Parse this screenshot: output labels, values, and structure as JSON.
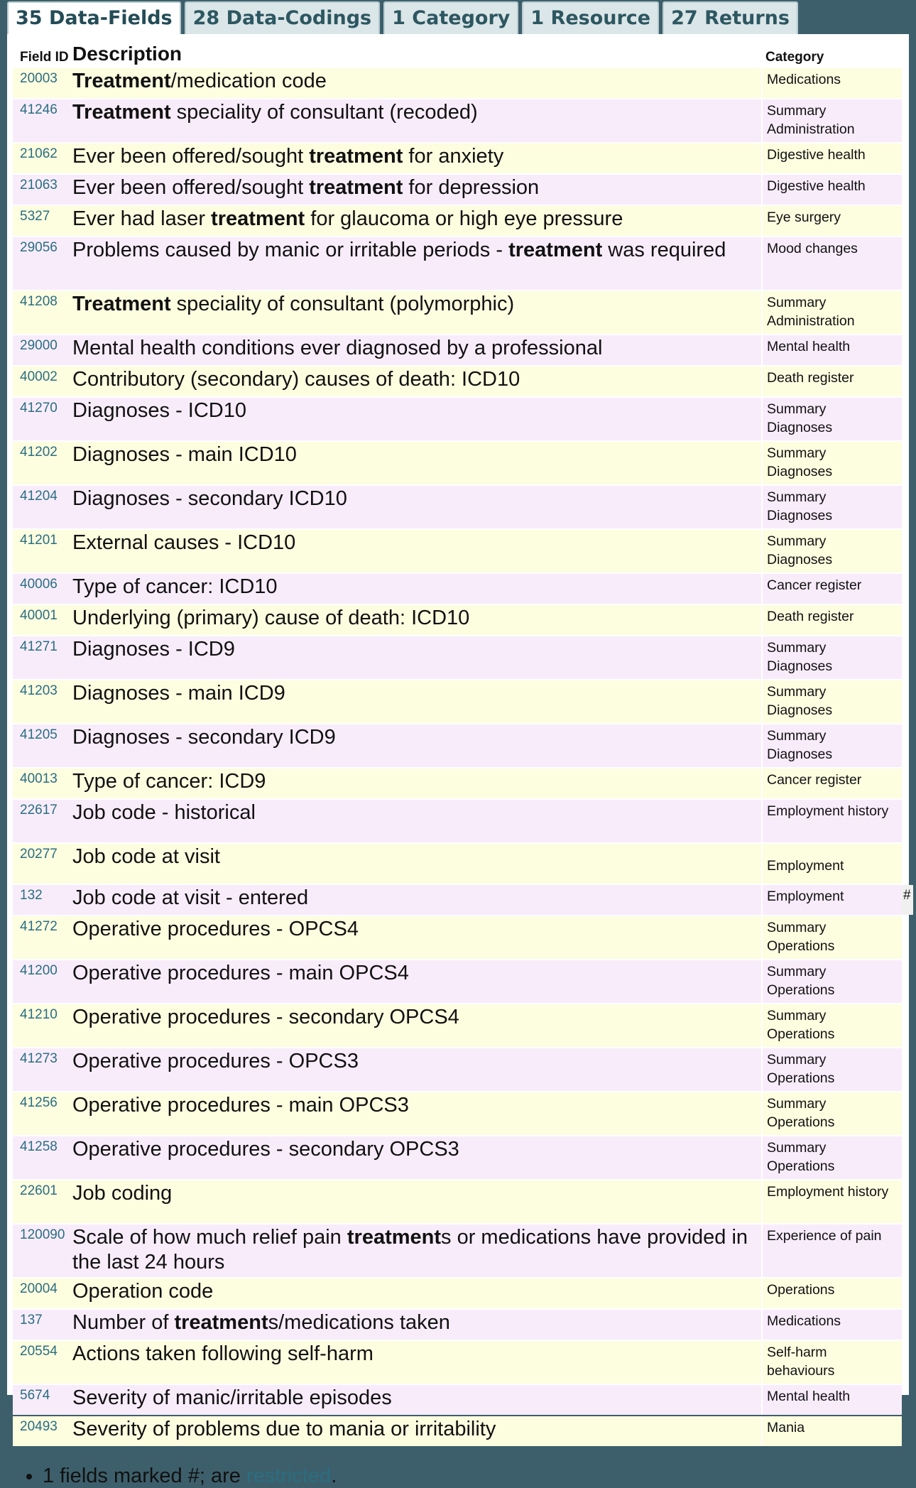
{
  "tabs": [
    {
      "label": "35 Data-Fields",
      "active": true
    },
    {
      "label": "28 Data-Codings",
      "active": false
    },
    {
      "label": "1 Category",
      "active": false
    },
    {
      "label": "1 Resource",
      "active": false
    },
    {
      "label": "27 Returns",
      "active": false
    }
  ],
  "table": {
    "headers": {
      "field_id": "Field ID",
      "description": "Description",
      "category": "Category"
    },
    "rows": [
      {
        "id": "20003",
        "desc": [
          {
            "t": "Treatment",
            "b": true
          },
          {
            "t": "/medication code"
          }
        ],
        "cat": [
          "Medications"
        ]
      },
      {
        "id": "41246",
        "desc": [
          {
            "t": "Treatment",
            "b": true
          },
          {
            "t": " speciality of consultant (recoded)"
          }
        ],
        "cat": [
          "Summary",
          "Administration"
        ]
      },
      {
        "id": "21062",
        "desc": [
          {
            "t": "Ever been offered/sought "
          },
          {
            "t": "treatment",
            "b": true
          },
          {
            "t": " for anxiety"
          }
        ],
        "cat": [
          "Digestive health"
        ]
      },
      {
        "id": "21063",
        "desc": [
          {
            "t": "Ever been offered/sought "
          },
          {
            "t": "treatment",
            "b": true
          },
          {
            "t": " for depression"
          }
        ],
        "cat": [
          "Digestive health"
        ]
      },
      {
        "id": "5327",
        "desc": [
          {
            "t": "Ever had laser "
          },
          {
            "t": "treatment",
            "b": true
          },
          {
            "t": " for glaucoma or high eye pressure"
          }
        ],
        "cat": [
          "Eye surgery"
        ]
      },
      {
        "id": "29056",
        "desc": [
          {
            "t": "Problems caused by manic or irritable periods - "
          },
          {
            "t": "treatment",
            "b": true
          },
          {
            "t": " was required"
          }
        ],
        "cat": [
          "Mood changes"
        ],
        "tall": true
      },
      {
        "id": "41208",
        "desc": [
          {
            "t": "Treatment",
            "b": true
          },
          {
            "t": " speciality of consultant (polymorphic)"
          }
        ],
        "cat": [
          "Summary",
          "Administration"
        ]
      },
      {
        "id": "29000",
        "desc": [
          {
            "t": "Mental health conditions ever diagnosed by a professional"
          }
        ],
        "cat": [
          "Mental health"
        ]
      },
      {
        "id": "40002",
        "desc": [
          {
            "t": "Contributory (secondary) causes of death: ICD10"
          }
        ],
        "cat": [
          "Death register"
        ]
      },
      {
        "id": "41270",
        "desc": [
          {
            "t": "Diagnoses - ICD10"
          }
        ],
        "cat": [
          "Summary",
          "Diagnoses"
        ]
      },
      {
        "id": "41202",
        "desc": [
          {
            "t": "Diagnoses - main ICD10"
          }
        ],
        "cat": [
          "Summary",
          "Diagnoses"
        ]
      },
      {
        "id": "41204",
        "desc": [
          {
            "t": "Diagnoses - secondary ICD10"
          }
        ],
        "cat": [
          "Summary",
          "Diagnoses"
        ]
      },
      {
        "id": "41201",
        "desc": [
          {
            "t": "External causes - ICD10"
          }
        ],
        "cat": [
          "Summary",
          "Diagnoses"
        ]
      },
      {
        "id": "40006",
        "desc": [
          {
            "t": "Type of cancer: ICD10"
          }
        ],
        "cat": [
          "Cancer register"
        ]
      },
      {
        "id": "40001",
        "desc": [
          {
            "t": "Underlying (primary) cause of death: ICD10"
          }
        ],
        "cat": [
          "Death register"
        ]
      },
      {
        "id": "41271",
        "desc": [
          {
            "t": "Diagnoses - ICD9"
          }
        ],
        "cat": [
          "Summary",
          "Diagnoses"
        ]
      },
      {
        "id": "41203",
        "desc": [
          {
            "t": "Diagnoses - main ICD9"
          }
        ],
        "cat": [
          "Summary",
          "Diagnoses"
        ]
      },
      {
        "id": "41205",
        "desc": [
          {
            "t": "Diagnoses - secondary ICD9"
          }
        ],
        "cat": [
          "Summary",
          "Diagnoses"
        ]
      },
      {
        "id": "40013",
        "desc": [
          {
            "t": "Type of cancer: ICD9"
          }
        ],
        "cat": [
          "Cancer register"
        ]
      },
      {
        "id": "22617",
        "desc": [
          {
            "t": "Job code - historical"
          }
        ],
        "cat": [
          "Employment history"
        ],
        "tall2": true
      },
      {
        "id": "20277",
        "desc": [
          {
            "t": "Job code at visit"
          }
        ],
        "cat": [
          "Employment"
        ],
        "catPad": true
      },
      {
        "id": "132",
        "desc": [
          {
            "t": "Job code at visit - entered"
          }
        ],
        "cat": [
          "Employment"
        ],
        "mark": "#"
      },
      {
        "id": "41272",
        "desc": [
          {
            "t": "Operative procedures - OPCS4"
          }
        ],
        "cat": [
          "Summary",
          "Operations"
        ]
      },
      {
        "id": "41200",
        "desc": [
          {
            "t": "Operative procedures - main OPCS4"
          }
        ],
        "cat": [
          "Summary",
          "Operations"
        ]
      },
      {
        "id": "41210",
        "desc": [
          {
            "t": "Operative procedures - secondary OPCS4"
          }
        ],
        "cat": [
          "Summary",
          "Operations"
        ]
      },
      {
        "id": "41273",
        "desc": [
          {
            "t": "Operative procedures - OPCS3"
          }
        ],
        "cat": [
          "Summary",
          "Operations"
        ]
      },
      {
        "id": "41256",
        "desc": [
          {
            "t": "Operative procedures - main OPCS3"
          }
        ],
        "cat": [
          "Summary",
          "Operations"
        ]
      },
      {
        "id": "41258",
        "desc": [
          {
            "t": "Operative procedures - secondary OPCS3"
          }
        ],
        "cat": [
          "Summary",
          "Operations"
        ]
      },
      {
        "id": "22601",
        "desc": [
          {
            "t": "Job coding"
          }
        ],
        "cat": [
          "Employment history"
        ],
        "tall2": true
      },
      {
        "id": "120090",
        "desc": [
          {
            "t": "Scale of how much relief pain "
          },
          {
            "t": "treatment",
            "b": true
          },
          {
            "t": "s or medications have provided in the last 24 hours"
          }
        ],
        "cat": [
          "Experience of pain"
        ],
        "tall": true
      },
      {
        "id": "20004",
        "desc": [
          {
            "t": "Operation code"
          }
        ],
        "cat": [
          "Operations"
        ]
      },
      {
        "id": "137",
        "desc": [
          {
            "t": "Number of "
          },
          {
            "t": "treatment",
            "b": true
          },
          {
            "t": "s/medications taken"
          }
        ],
        "cat": [
          "Medications"
        ]
      },
      {
        "id": "20554",
        "desc": [
          {
            "t": "Actions taken following self-harm"
          }
        ],
        "cat": [
          "Self-harm",
          "behaviours"
        ]
      },
      {
        "id": "5674",
        "desc": [
          {
            "t": "Severity of manic/irritable episodes"
          }
        ],
        "cat": [
          "Mental health"
        ]
      },
      {
        "id": "20493",
        "desc": [
          {
            "t": "Severity of problems due to mania or irritability"
          }
        ],
        "cat": [
          "Mania"
        ]
      }
    ]
  },
  "notes": {
    "prefix": "1 fields marked #; are ",
    "link": "restricted",
    "suffix": "."
  }
}
